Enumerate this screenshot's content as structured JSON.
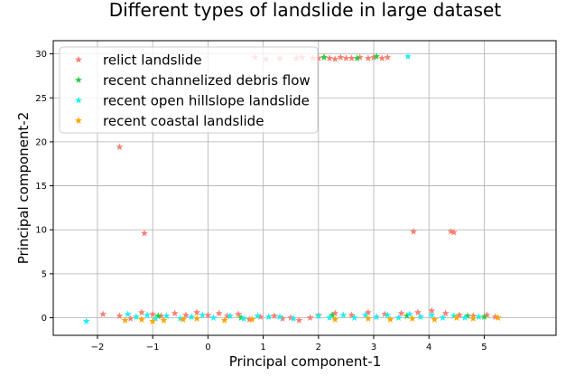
{
  "chart_data": {
    "type": "scatter",
    "title": "Different types of landslide in large dataset",
    "xlabel": "Principal component-1",
    "ylabel": "Principal component-2",
    "xlim": [
      -2.8,
      6.3
    ],
    "ylim": [
      -2.0,
      31.5
    ],
    "xticks": [
      -2,
      -1,
      0,
      1,
      2,
      3,
      4,
      5
    ],
    "yticks": [
      0,
      5,
      10,
      15,
      20,
      25,
      30
    ],
    "grid": true,
    "legend_position": "top-left",
    "marker": "star",
    "series": [
      {
        "name": "relict landslide",
        "color": "#fa8072",
        "points": [
          [
            -1.6,
            19.4
          ],
          [
            -1.15,
            9.6
          ],
          [
            3.72,
            9.8
          ],
          [
            4.4,
            9.8
          ],
          [
            4.45,
            9.7
          ],
          [
            0.85,
            29.6
          ],
          [
            1.05,
            29.4
          ],
          [
            1.3,
            29.5
          ],
          [
            1.6,
            29.5
          ],
          [
            1.7,
            29.6
          ],
          [
            1.9,
            29.5
          ],
          [
            2.0,
            29.5
          ],
          [
            2.1,
            29.6
          ],
          [
            2.2,
            29.5
          ],
          [
            2.3,
            29.4
          ],
          [
            2.4,
            29.6
          ],
          [
            2.5,
            29.5
          ],
          [
            2.6,
            29.5
          ],
          [
            2.75,
            29.6
          ],
          [
            2.9,
            29.5
          ],
          [
            3.0,
            29.6
          ],
          [
            3.15,
            29.5
          ],
          [
            3.25,
            29.6
          ],
          [
            -1.9,
            0.4
          ],
          [
            -1.6,
            0.2
          ],
          [
            -1.4,
            -0.1
          ],
          [
            -1.2,
            0.6
          ],
          [
            -1.0,
            0.4
          ],
          [
            -0.85,
            0.2
          ],
          [
            -0.6,
            0.5
          ],
          [
            -0.4,
            0.3
          ],
          [
            -0.2,
            0.6
          ],
          [
            0.0,
            0.3
          ],
          [
            0.2,
            0.5
          ],
          [
            0.35,
            0.2
          ],
          [
            0.55,
            0.4
          ],
          [
            0.75,
            -0.2
          ],
          [
            0.95,
            0.1
          ],
          [
            1.2,
            0.2
          ],
          [
            1.35,
            -0.1
          ],
          [
            1.5,
            0.0
          ],
          [
            1.65,
            -0.3
          ],
          [
            1.85,
            0.0
          ],
          [
            2.0,
            0.3
          ],
          [
            2.3,
            0.5
          ],
          [
            2.6,
            0.3
          ],
          [
            2.9,
            0.6
          ],
          [
            3.2,
            0.4
          ],
          [
            3.5,
            0.5
          ],
          [
            3.8,
            0.6
          ],
          [
            4.05,
            0.8
          ],
          [
            4.3,
            0.5
          ],
          [
            4.55,
            0.3
          ],
          [
            4.8,
            0.2
          ],
          [
            5.05,
            0.3
          ],
          [
            5.2,
            0.1
          ]
        ]
      },
      {
        "name": "recent channelized debris flow",
        "color": "#2ecc40",
        "points": [
          [
            2.1,
            29.6
          ],
          [
            2.7,
            29.5
          ],
          [
            3.05,
            29.7
          ],
          [
            -0.9,
            0.2
          ],
          [
            0.6,
            0.0
          ],
          [
            2.25,
            0.3
          ],
          [
            3.6,
            0.2
          ],
          [
            4.7,
            0.2
          ],
          [
            5.0,
            0.1
          ]
        ]
      },
      {
        "name": "recent open hillslope landslide",
        "color": "#22eeee",
        "points": [
          [
            3.62,
            29.7
          ],
          [
            -2.2,
            -0.4
          ],
          [
            -1.45,
            0.4
          ],
          [
            -1.3,
            0.1
          ],
          [
            -1.1,
            0.3
          ],
          [
            -0.95,
            -0.1
          ],
          [
            -0.75,
            0.2
          ],
          [
            -0.5,
            -0.1
          ],
          [
            -0.3,
            0.1
          ],
          [
            -0.1,
            0.3
          ],
          [
            0.1,
            0.0
          ],
          [
            0.4,
            0.2
          ],
          [
            0.65,
            -0.1
          ],
          [
            0.9,
            0.2
          ],
          [
            1.1,
            0.1
          ],
          [
            1.3,
            0.1
          ],
          [
            1.55,
            -0.1
          ],
          [
            2.0,
            0.2
          ],
          [
            2.2,
            0.0
          ],
          [
            2.45,
            0.3
          ],
          [
            2.65,
            0.0
          ],
          [
            2.85,
            0.3
          ],
          [
            3.05,
            0.1
          ],
          [
            3.25,
            0.3
          ],
          [
            3.45,
            0.0
          ],
          [
            3.65,
            0.4
          ],
          [
            3.85,
            0.1
          ],
          [
            4.05,
            0.3
          ],
          [
            4.25,
            0.0
          ],
          [
            4.45,
            0.2
          ],
          [
            4.65,
            0.0
          ],
          [
            4.9,
            0.1
          ]
        ]
      },
      {
        "name": "recent coastal landslide",
        "color": "#ffa500",
        "points": [
          [
            -1.5,
            -0.3
          ],
          [
            -1.2,
            -0.2
          ],
          [
            -1.0,
            -0.4
          ],
          [
            -0.8,
            -0.3
          ],
          [
            -0.45,
            -0.2
          ],
          [
            -0.2,
            -0.1
          ],
          [
            0.3,
            -0.3
          ],
          [
            0.8,
            -0.2
          ],
          [
            2.3,
            -0.2
          ],
          [
            2.9,
            -0.1
          ],
          [
            3.3,
            -0.2
          ],
          [
            3.7,
            -0.1
          ],
          [
            4.1,
            -0.2
          ],
          [
            4.5,
            0.0
          ],
          [
            4.8,
            -0.1
          ],
          [
            5.25,
            0.0
          ]
        ]
      }
    ]
  }
}
